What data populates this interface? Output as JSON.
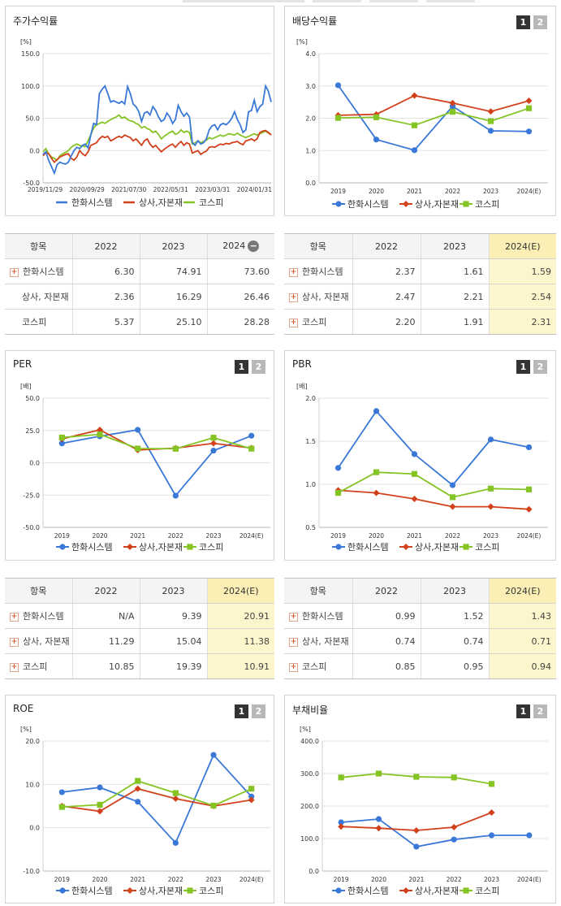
{
  "header_strip": "",
  "button_labels": {
    "one": "1",
    "two": "2"
  },
  "unit_labels": {
    "pct": "[%]",
    "times": "[배]"
  },
  "colors": {
    "hanwha": "#3a78d8",
    "sector": "#d2401c",
    "kospi": "#85c425",
    "highlight": "#fdf5cc"
  },
  "icons": {
    "expand": "plus-icon",
    "collapse": "minus-icon",
    "series_hanwha": "circle-marker",
    "series_sector": "diamond-marker",
    "series_kospi": "square-marker"
  },
  "panels": {
    "stock_return": {
      "title": "주가수익률",
      "chart_data": {
        "type": "line",
        "ylim": [
          -50,
          150
        ],
        "yticks": [
          "150.0",
          "100.0",
          "50.0",
          "0.0",
          "-50.0"
        ],
        "xticks": [
          "2019/11/29",
          "2020/09/29",
          "2021/07/30",
          "2022/05/31",
          "2023/03/31",
          "2024/01/31"
        ],
        "legend": [
          "한화시스템",
          "상사,자본재",
          "코스피"
        ],
        "series": [
          {
            "name": "한화시스템",
            "values": [
              -6,
              -2,
              -15,
              -25,
              -35,
              -22,
              -18,
              -20,
              -21,
              -18,
              -8,
              0,
              5,
              3,
              8,
              10,
              4,
              25,
              42,
              40,
              88,
              95,
              100,
              88,
              75,
              77,
              75,
              73,
              76,
              72,
              99,
              88,
              72,
              68,
              60,
              45,
              58,
              60,
              55,
              68,
              62,
              52,
              45,
              48,
              58,
              52,
              42,
              48,
              70,
              60,
              53,
              58,
              52,
              12,
              8,
              15,
              10,
              12,
              18,
              32,
              38,
              40,
              32,
              40,
              42,
              40,
              44,
              50,
              60,
              48,
              40,
              28,
              32,
              60,
              62,
              78,
              60,
              68,
              72,
              100,
              92,
              75
            ]
          },
          {
            "name": "상사,자본재",
            "values": [
              -8,
              -3,
              -5,
              -12,
              -18,
              -14,
              -10,
              -8,
              -6,
              -5,
              -12,
              -15,
              -10,
              0,
              -5,
              -8,
              -2,
              8,
              10,
              12,
              18,
              22,
              20,
              22,
              15,
              17,
              20,
              22,
              20,
              24,
              22,
              20,
              15,
              18,
              13,
              8,
              15,
              18,
              10,
              5,
              8,
              3,
              -2,
              2,
              5,
              8,
              10,
              5,
              10,
              14,
              8,
              12,
              10,
              -4,
              -2,
              0,
              -6,
              -3,
              -1,
              5,
              6,
              5,
              8,
              10,
              9,
              11,
              10,
              12,
              13,
              14,
              11,
              9,
              15,
              16,
              18,
              15,
              18,
              28,
              30,
              31,
              28,
              24
            ]
          },
          {
            "name": "코스피",
            "values": [
              -2,
              3,
              -5,
              -10,
              -12,
              -15,
              -8,
              -5,
              -3,
              0,
              5,
              8,
              10,
              8,
              7,
              6,
              15,
              25,
              35,
              40,
              42,
              44,
              42,
              45,
              48,
              50,
              52,
              55,
              50,
              52,
              48,
              46,
              45,
              42,
              40,
              35,
              37,
              34,
              32,
              28,
              30,
              25,
              18,
              22,
              25,
              28,
              30,
              25,
              27,
              32,
              28,
              30,
              28,
              10,
              12,
              15,
              12,
              14,
              16,
              20,
              18,
              20,
              22,
              24,
              22,
              24,
              26,
              25,
              24,
              27,
              24,
              22,
              20,
              22,
              24,
              26,
              24,
              26,
              28,
              30,
              27,
              25
            ]
          }
        ]
      }
    },
    "dividend_yield": {
      "title": "배당수익률",
      "chart_data": {
        "type": "line",
        "ylim": [
          0,
          4
        ],
        "yticks": [
          "4.0",
          "3.0",
          "2.0",
          "1.0",
          "0.0"
        ],
        "categories": [
          "2019",
          "2020",
          "2021",
          "2022",
          "2023",
          "2024(E)"
        ],
        "legend": [
          "한화시스템",
          "상사,자본재",
          "코스피"
        ],
        "series": [
          {
            "name": "한화시스템",
            "values": [
              3.02,
              1.34,
              1.01,
              2.37,
              1.61,
              1.59
            ]
          },
          {
            "name": "상사,자본재",
            "values": [
              2.09,
              2.12,
              2.7,
              2.47,
              2.21,
              2.54
            ]
          },
          {
            "name": "코스피",
            "values": [
              2.01,
              2.03,
              1.78,
              2.2,
              1.91,
              2.31
            ]
          }
        ]
      }
    },
    "per": {
      "title": "PER",
      "chart_data": {
        "type": "line",
        "ylim": [
          -50,
          50
        ],
        "yticks": [
          "50.0",
          "25.0",
          "0.0",
          "-25.0",
          "-50.0"
        ],
        "categories": [
          "2019",
          "2020",
          "2021",
          "2022",
          "2023",
          "2024(E)"
        ],
        "legend": [
          "한화시스템",
          "상사,자본재",
          "코스피"
        ],
        "series": [
          {
            "name": "한화시스템",
            "values": [
              15.0,
              20.5,
              25.5,
              -25.5,
              9.39,
              20.91
            ]
          },
          {
            "name": "상사,자본재",
            "values": [
              18.5,
              25.5,
              9.8,
              11.29,
              15.04,
              11.38
            ]
          },
          {
            "name": "코스피",
            "values": [
              19.5,
              22.0,
              11.0,
              10.85,
              19.39,
              10.91
            ]
          }
        ]
      }
    },
    "pbr": {
      "title": "PBR",
      "chart_data": {
        "type": "line",
        "ylim": [
          0.5,
          2.0
        ],
        "yticks": [
          "2.0",
          "1.5",
          "1.0",
          "0.5"
        ],
        "categories": [
          "2019",
          "2020",
          "2021",
          "2022",
          "2023",
          "2024(E)"
        ],
        "legend": [
          "한화시스템",
          "상사,자본재",
          "코스피"
        ],
        "series": [
          {
            "name": "한화시스템",
            "values": [
              1.19,
              1.85,
              1.35,
              0.99,
              1.52,
              1.43
            ]
          },
          {
            "name": "상사,자본재",
            "values": [
              0.93,
              0.9,
              0.83,
              0.74,
              0.74,
              0.71
            ]
          },
          {
            "name": "코스피",
            "values": [
              0.9,
              1.14,
              1.12,
              0.85,
              0.95,
              0.94
            ]
          }
        ]
      }
    },
    "roe": {
      "title": "ROE",
      "chart_data": {
        "type": "line",
        "ylim": [
          -10,
          20
        ],
        "yticks": [
          "20.0",
          "10.0",
          "0.0",
          "-10.0"
        ],
        "categories": [
          "2019",
          "2020",
          "2021",
          "2022",
          "2023",
          "2024(E)"
        ],
        "legend": [
          "한화시스템",
          "상사,자본재",
          "코스피"
        ],
        "series": [
          {
            "name": "한화시스템",
            "values": [
              8.2,
              9.3,
              6.0,
              -3.5,
              16.8,
              7.2
            ]
          },
          {
            "name": "상사,자본재",
            "values": [
              5.0,
              3.8,
              9.0,
              6.7,
              5.0,
              6.4
            ]
          },
          {
            "name": "코스피",
            "values": [
              4.8,
              5.3,
              10.8,
              8.0,
              5.1,
              9.0
            ]
          }
        ]
      }
    },
    "debt_ratio": {
      "title": "부채비율",
      "chart_data": {
        "type": "line",
        "ylim": [
          0,
          400
        ],
        "yticks": [
          "400.0",
          "300.0",
          "200.0",
          "100.0",
          "0.0"
        ],
        "categories": [
          "2019",
          "2020",
          "2021",
          "2022",
          "2023",
          "2024(E)"
        ],
        "legend": [
          "한화시스템",
          "상사,자본재",
          "코스피"
        ],
        "series": [
          {
            "name": "한화시스템",
            "values": [
              150,
              160,
              75,
              97,
              110,
              110
            ]
          },
          {
            "name": "상사,자본재",
            "values": [
              137,
              132,
              125,
              135,
              180,
              null
            ]
          },
          {
            "name": "코스피",
            "values": [
              288,
              300,
              290,
              288,
              268,
              null
            ]
          }
        ]
      }
    }
  },
  "tables": {
    "stock_return": {
      "header": [
        "항목",
        "2022",
        "2023",
        "2024"
      ],
      "rows": [
        {
          "name": "한화시스템",
          "values": [
            "6.30",
            "74.91",
            "73.60"
          ]
        },
        {
          "name": "상사, 자본재",
          "values": [
            "2.36",
            "16.29",
            "26.46"
          ]
        },
        {
          "name": "코스피",
          "values": [
            "5.37",
            "25.10",
            "28.28"
          ]
        }
      ]
    },
    "dividend_yield": {
      "header": [
        "항목",
        "2022",
        "2023",
        "2024(E)"
      ],
      "rows": [
        {
          "name": "한화시스템",
          "values": [
            "2.37",
            "1.61",
            "1.59"
          ]
        },
        {
          "name": "상사, 자본재",
          "values": [
            "2.47",
            "2.21",
            "2.54"
          ]
        },
        {
          "name": "코스피",
          "values": [
            "2.20",
            "1.91",
            "2.31"
          ]
        }
      ]
    },
    "per": {
      "header": [
        "항목",
        "2022",
        "2023",
        "2024(E)"
      ],
      "rows": [
        {
          "name": "한화시스템",
          "values": [
            "N/A",
            "9.39",
            "20.91"
          ]
        },
        {
          "name": "상사, 자본재",
          "values": [
            "11.29",
            "15.04",
            "11.38"
          ]
        },
        {
          "name": "코스피",
          "values": [
            "10.85",
            "19.39",
            "10.91"
          ]
        }
      ]
    },
    "pbr": {
      "header": [
        "항목",
        "2022",
        "2023",
        "2024(E)"
      ],
      "rows": [
        {
          "name": "한화시스템",
          "values": [
            "0.99",
            "1.52",
            "1.43"
          ]
        },
        {
          "name": "상사, 자본재",
          "values": [
            "0.74",
            "0.74",
            "0.71"
          ]
        },
        {
          "name": "코스피",
          "values": [
            "0.85",
            "0.95",
            "0.94"
          ]
        }
      ]
    }
  }
}
